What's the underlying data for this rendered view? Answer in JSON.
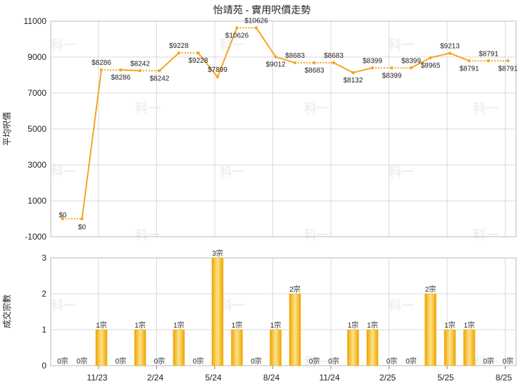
{
  "title": "怡靖苑 - 實用呎價走勢",
  "watermark_text": "科一",
  "colors": {
    "line": "#f5a623",
    "bar_light": "#fde38a",
    "bar_dark": "#f0a500",
    "grid": "#d9d9d9",
    "watermark": "#efefef"
  },
  "chart_data": [
    {
      "type": "line",
      "ylabel": "平均呎價",
      "ylim": [
        -1000,
        11000
      ],
      "yticks": [
        "11000",
        "9000",
        "7000",
        "5000",
        "3000",
        "1000",
        "-1000"
      ],
      "grid": true,
      "values": [
        0,
        0,
        8286,
        8286,
        8242,
        8242,
        9228,
        9228,
        7899,
        10626,
        10626,
        9012,
        8683,
        8683,
        8683,
        8132,
        8399,
        8399,
        8399,
        8965,
        9213,
        8791,
        8791,
        8791
      ],
      "labels": [
        "$0",
        "$0",
        "$8286",
        "$8286",
        "$8242",
        "$8242",
        "$9228",
        "$9228",
        "$7899",
        "$10626",
        "$10626",
        "$9012",
        "$8683",
        "$8683",
        "$8683",
        "$8132",
        "$8399",
        "$8399",
        "$8399",
        "$8965",
        "$9213",
        "$8791",
        "$8791",
        "$8791"
      ],
      "has_transaction": [
        false,
        false,
        true,
        false,
        true,
        false,
        true,
        false,
        true,
        true,
        false,
        true,
        true,
        false,
        false,
        true,
        true,
        false,
        false,
        true,
        true,
        true,
        false,
        false
      ]
    },
    {
      "type": "bar",
      "ylabel": "成交宗數",
      "ylim": [
        0,
        3
      ],
      "yticks": [
        "3",
        "2",
        "1",
        "0"
      ],
      "grid": true,
      "values": [
        0,
        0,
        1,
        0,
        1,
        0,
        1,
        0,
        3,
        1,
        0,
        1,
        2,
        0,
        0,
        1,
        1,
        0,
        0,
        2,
        1,
        1,
        0,
        0
      ],
      "labels": [
        "0宗",
        "0宗",
        "1宗",
        "0宗",
        "1宗",
        "0宗",
        "1宗",
        "0宗",
        "3宗",
        "1宗",
        "0宗",
        "1宗",
        "2宗",
        "0宗",
        "0宗",
        "1宗",
        "1宗",
        "0宗",
        "0宗",
        "2宗",
        "1宗",
        "1宗",
        "0宗",
        "0宗"
      ],
      "x_ticks": [
        {
          "index": 2,
          "label": "11/23"
        },
        {
          "index": 5,
          "label": "2/24"
        },
        {
          "index": 8,
          "label": "5/24"
        },
        {
          "index": 11,
          "label": "8/24"
        },
        {
          "index": 14,
          "label": "11/24"
        },
        {
          "index": 17,
          "label": "2/25"
        },
        {
          "index": 20,
          "label": "5/25"
        },
        {
          "index": 23,
          "label": "8/25"
        }
      ]
    }
  ]
}
